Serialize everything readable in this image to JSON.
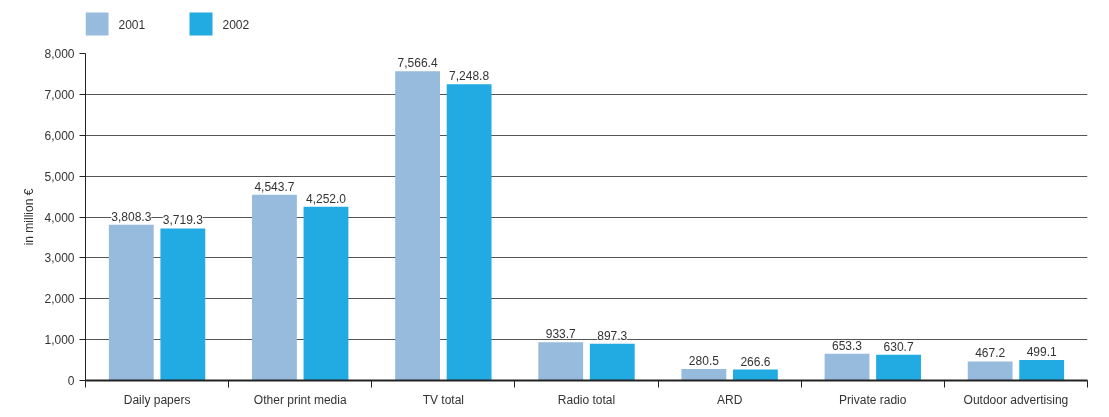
{
  "chart_data": {
    "type": "bar",
    "ylabel": "in million €",
    "categories": [
      "Daily papers",
      "Other print media",
      "TV total",
      "Radio total",
      "ARD",
      "Private radio",
      "Outdoor advertising"
    ],
    "series": [
      {
        "name": "2001",
        "color": "#96bbdd",
        "values": [
          3808.3,
          4543.7,
          7566.4,
          933.7,
          280.5,
          653.3,
          467.2
        ],
        "value_labels": [
          "3,808.3",
          "4,543.7",
          "7,566.4",
          "933.7",
          "280.5",
          "653.3",
          "467.2"
        ]
      },
      {
        "name": "2002",
        "color": "#22aae2",
        "values": [
          3719.3,
          4252.0,
          7248.8,
          897.3,
          266.6,
          630.7,
          499.1
        ],
        "value_labels": [
          "3,719.3",
          "4,252.0",
          "7,248.8",
          "897.3",
          "266.6",
          "630.7",
          "499.1"
        ]
      }
    ],
    "ylim": [
      0,
      8000
    ],
    "yticks": [
      0,
      {
        "value": 1000,
        "label": "1,000"
      },
      {
        "value": 2000,
        "label": "2,000"
      },
      {
        "value": 3000,
        "label": "3,000"
      },
      {
        "value": 4000,
        "label": "4,000"
      },
      {
        "value": 5000,
        "label": "5,000"
      },
      {
        "value": 6000,
        "label": "6,000"
      },
      {
        "value": 7000,
        "label": "7,000"
      },
      {
        "value": 8000,
        "label": "8,000"
      }
    ],
    "grid": "y",
    "legend": "top left"
  }
}
